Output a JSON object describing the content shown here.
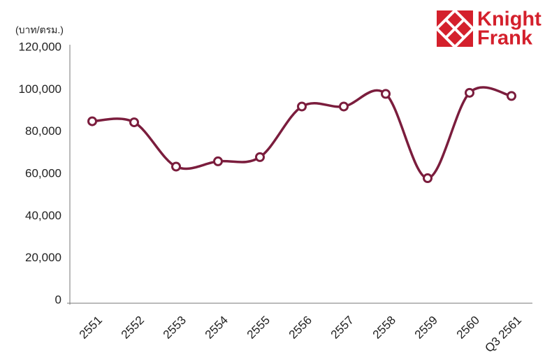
{
  "chart_data": {
    "type": "line",
    "unit_label": "(บาท/ตรม.)",
    "logo": {
      "line1": "Knight",
      "line2": "Frank"
    },
    "categories": [
      "2551",
      "2552",
      "2553",
      "2554",
      "2555",
      "2556",
      "2557",
      "2558",
      "2559",
      "2560",
      "Q3 2561"
    ],
    "values": [
      85000,
      84500,
      63500,
      66000,
      68000,
      92000,
      92000,
      98000,
      58000,
      98500,
      97000
    ],
    "color": "#7b1d3d",
    "ylim": [
      0,
      120000
    ],
    "yticks": [
      0,
      {
        "value": 20000,
        "label": "20,000"
      },
      {
        "value": 40000,
        "label": "40,000"
      },
      {
        "value": 60000,
        "label": "60,000"
      },
      {
        "value": 80000,
        "label": "80,000"
      },
      {
        "value": 100000,
        "label": "100,000"
      },
      {
        "value": 120000,
        "label": "120,000"
      }
    ]
  }
}
